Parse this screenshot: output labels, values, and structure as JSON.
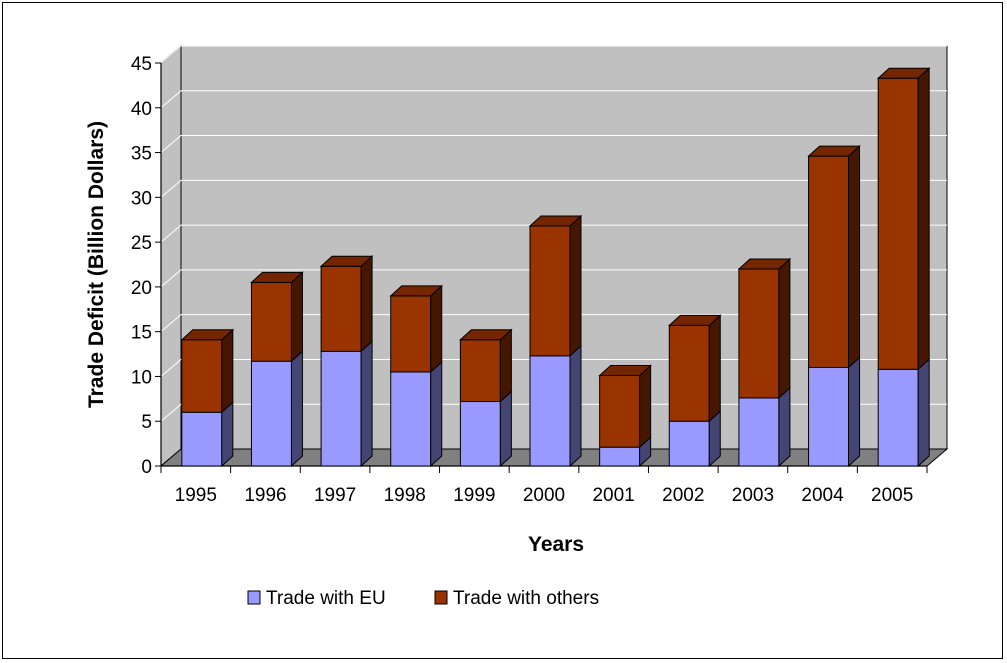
{
  "chart_data": {
    "type": "bar",
    "stacked": true,
    "three_d": true,
    "categories": [
      "1995",
      "1996",
      "1997",
      "1998",
      "1999",
      "2000",
      "2001",
      "2002",
      "2003",
      "2004",
      "2005"
    ],
    "series": [
      {
        "name": "Trade with EU",
        "color": "#9999ff",
        "values": [
          6.0,
          11.7,
          12.8,
          10.5,
          7.2,
          12.3,
          2.1,
          5.0,
          7.6,
          11.0,
          10.8
        ]
      },
      {
        "name": "Trade with others",
        "color": "#993300",
        "values": [
          8.1,
          8.8,
          9.5,
          8.5,
          6.9,
          14.5,
          8.0,
          10.7,
          14.4,
          23.6,
          32.5
        ]
      }
    ],
    "xlabel": "Years",
    "ylabel": "Trade Deficit (Billion Dollars)",
    "ylim": [
      0,
      45
    ],
    "yticks": [
      "0",
      "5",
      "10",
      "15",
      "20",
      "25",
      "30",
      "35",
      "40",
      "45"
    ],
    "ytick_values": [
      0,
      5,
      10,
      15,
      20,
      25,
      30,
      35,
      40,
      45
    ],
    "grid": true,
    "legend_position": "bottom",
    "wall_color": "#c0c0c0",
    "floor_color": "#808080"
  }
}
